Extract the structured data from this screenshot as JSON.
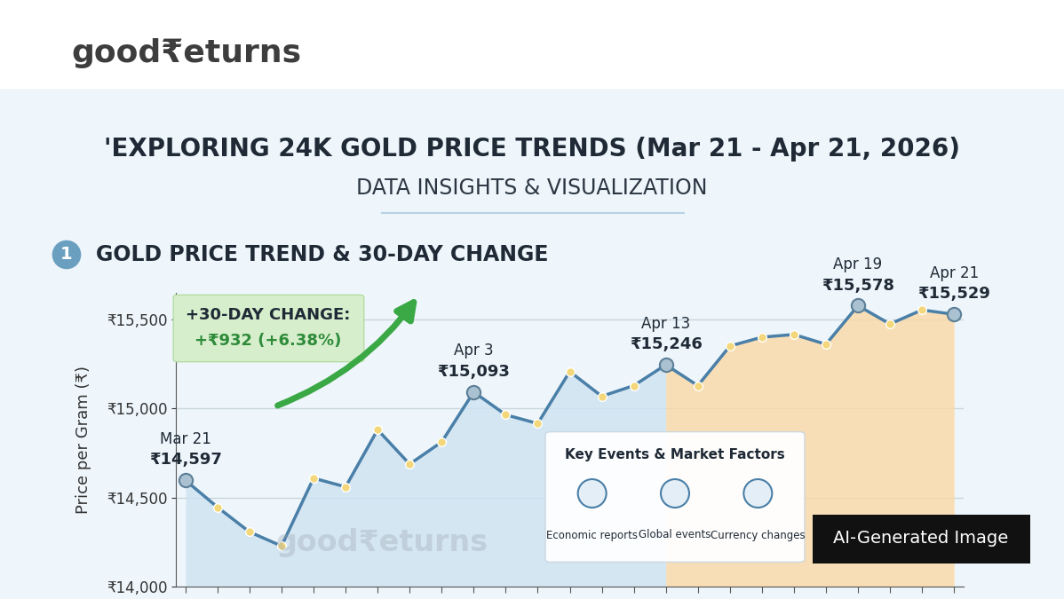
{
  "header": {
    "logo": "good₹eturns",
    "title": "'EXPLORING 24K GOLD PRICE TRENDS (Mar 21 - Apr 21, 2026)",
    "subtitle": "DATA INSIGHTS & VISUALIZATION",
    "section_number": "1",
    "section_title": "GOLD PRICE TREND & 30-DAY CHANGE"
  },
  "chart_data": {
    "type": "area",
    "categories": [
      "Mar 21",
      null,
      null,
      null,
      null,
      null,
      null,
      null,
      null,
      "Apr 3",
      null,
      null,
      null,
      null,
      null,
      "Apr 13",
      null,
      null,
      null,
      null,
      null,
      "Apr 19",
      null,
      null,
      "Apr 21"
    ],
    "values": [
      14597,
      14446,
      14307,
      14228,
      14609,
      14560,
      14881,
      14688,
      14812,
      15093,
      14965,
      14916,
      15208,
      15069,
      15129,
      15246,
      15129,
      15351,
      15401,
      15416,
      15361,
      15578,
      15475,
      15554,
      15529
    ],
    "value_labels": [
      "₹14,597",
      null,
      null,
      null,
      null,
      null,
      null,
      null,
      null,
      "₹15,093",
      null,
      null,
      null,
      null,
      null,
      "₹15,246",
      null,
      null,
      null,
      null,
      null,
      "₹15,578",
      null,
      null,
      "₹15,529"
    ],
    "ylabel": "Price per Gram (₹)",
    "ylim": [
      14000,
      15650
    ],
    "yticks": [
      {
        "value": 14000,
        "label": "₹14,000"
      },
      {
        "value": 14500,
        "label": "₹14,500"
      },
      {
        "value": 15000,
        "label": "₹15,000"
      },
      {
        "value": 15500,
        "label": "₹15,500"
      }
    ],
    "grid": true,
    "tick_labels": "y",
    "marker": "o",
    "color": "#4a7fa8",
    "callout": {
      "title": "+30-DAY CHANGE:",
      "text": "+₹932 (+6.38%)"
    }
  },
  "panel": {
    "title": "Key Events & Market Factors",
    "items": [
      "Economic reports",
      "Global events",
      "Currency changes"
    ]
  },
  "badge": "AI-Generated Image",
  "watermark": "good₹eturns"
}
